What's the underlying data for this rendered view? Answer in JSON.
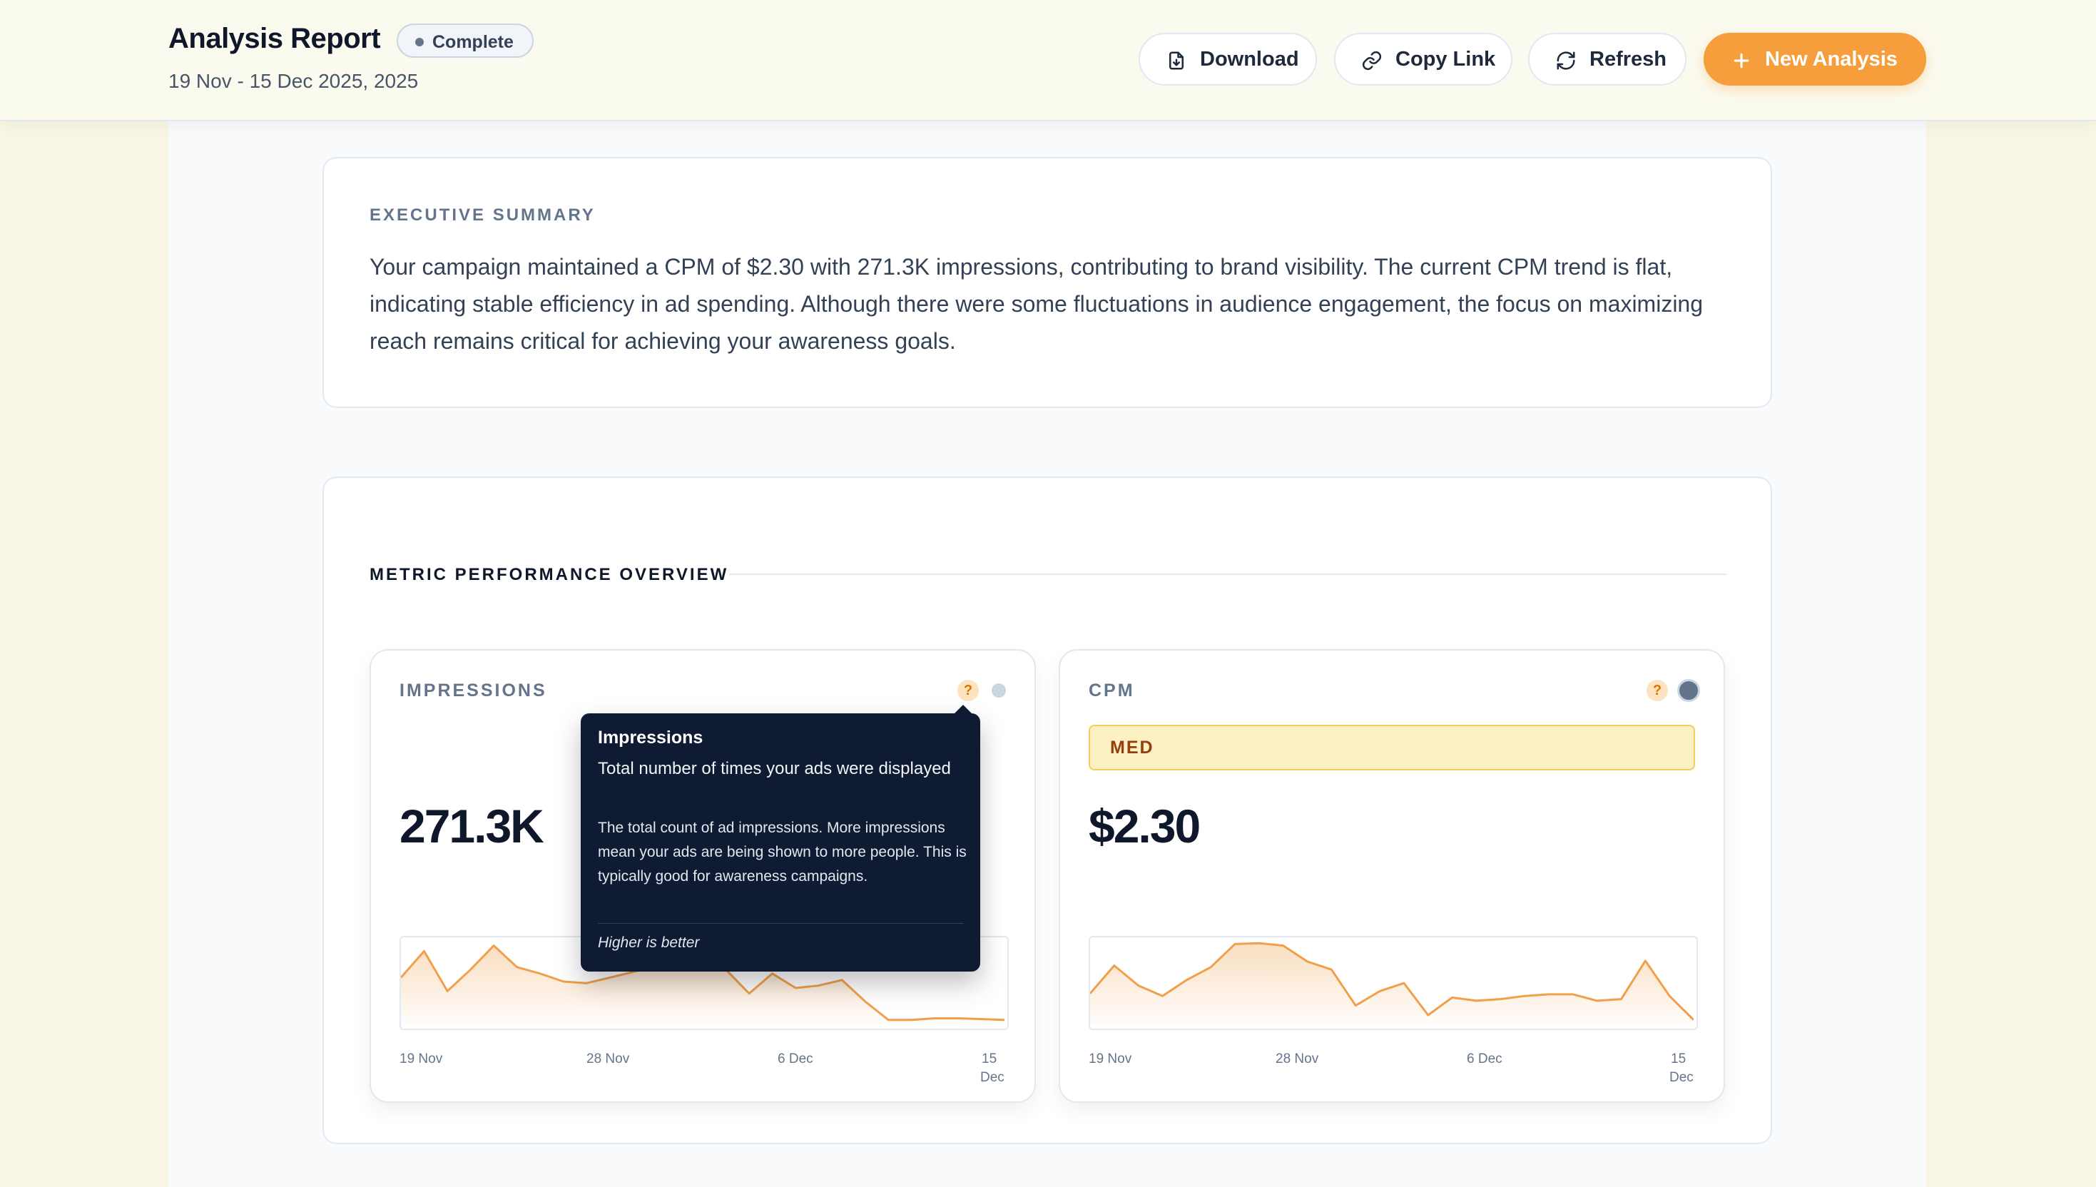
{
  "header": {
    "title": "Analysis Report",
    "status": "Complete",
    "date_range": "19 Nov - 15 Dec 2025, 2025",
    "buttons": {
      "download": "Download",
      "copy_link": "Copy Link",
      "refresh": "Refresh",
      "new_analysis": "New Analysis"
    }
  },
  "summary": {
    "label": "EXECUTIVE SUMMARY",
    "text": "Your campaign maintained a CPM of $2.30 with 271.3K impressions, contributing to brand visibility. The current CPM trend is flat, indicating stable efficiency in ad spending. Although there were some fluctuations in audience engagement, the focus on maximizing reach remains critical for achieving your awareness goals."
  },
  "overview": {
    "label": "METRIC PERFORMANCE OVERVIEW",
    "metrics": [
      {
        "label": "IMPRESSIONS",
        "help": "?",
        "value": "271.3K",
        "ticks": [
          "19 Nov",
          "28 Nov",
          "6 Dec",
          "15",
          "Dec"
        ],
        "trend": [
          0.55,
          0.88,
          0.38,
          0.65,
          0.95,
          0.68,
          0.6,
          0.5,
          0.48,
          0.55,
          0.62,
          0.7,
          0.75,
          0.8,
          0.65,
          0.35,
          0.6,
          0.42,
          0.45,
          0.52,
          0.25,
          0.02,
          0.02,
          0.04,
          0.04,
          0.03,
          0.02
        ]
      },
      {
        "label": "CPM",
        "help": "?",
        "badge": "MED",
        "value": "$2.30",
        "ticks": [
          "19 Nov",
          "28 Nov",
          "6 Dec",
          "15",
          "Dec"
        ],
        "trend": [
          0.35,
          0.7,
          0.45,
          0.32,
          0.52,
          0.68,
          0.97,
          0.98,
          0.95,
          0.75,
          0.65,
          0.2,
          0.38,
          0.48,
          0.08,
          0.3,
          0.26,
          0.28,
          0.32,
          0.34,
          0.34,
          0.26,
          0.28,
          0.76,
          0.32,
          0.02
        ]
      }
    ]
  },
  "tooltip": {
    "title": "Impressions",
    "short": "Total number of times your ads were displayed",
    "long": "The total count of ad impressions. More impressions mean your ads are being shown to more people. This is typically good for awareness campaigns.",
    "note": "Higher is better"
  },
  "colors": {
    "accent": "#f59e3b",
    "trend_line": "#f0a04b",
    "tooltip_bg": "#0f1b33",
    "badge_med": "#fdf0c3"
  }
}
